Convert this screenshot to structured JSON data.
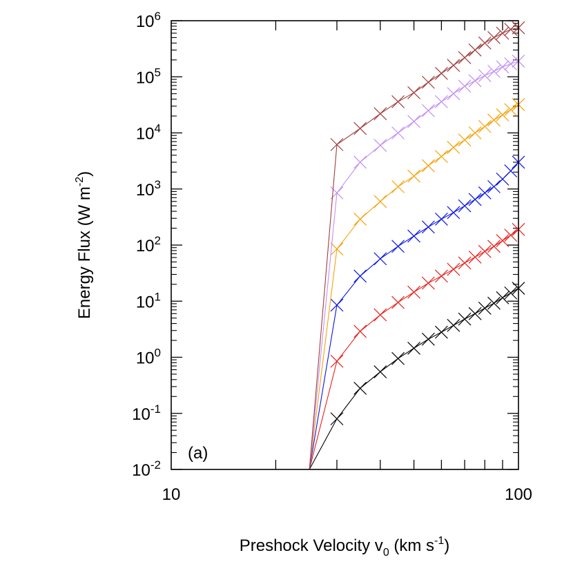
{
  "chart_data": {
    "type": "line",
    "panel_label": "(a)",
    "xlabel": {
      "main": "Preshock Velocity v",
      "sub": "0",
      "unit_pre": " (km s",
      "sup": "-1",
      "unit_post": ")"
    },
    "ylabel": {
      "main": "Energy Flux (W m",
      "sup": "-2",
      "post": ")"
    },
    "x_scale": "log",
    "y_scale": "log",
    "xlim": [
      10,
      100
    ],
    "ylim": [
      0.01,
      1000000
    ],
    "x_ticks": [
      {
        "value": 10,
        "label": "10"
      },
      {
        "value": 100,
        "label": "100"
      }
    ],
    "y_ticks": [
      {
        "value": 0.01,
        "base": "10",
        "exp": "-2"
      },
      {
        "value": 0.1,
        "base": "10",
        "exp": "-1"
      },
      {
        "value": 1,
        "base": "10",
        "exp": "0"
      },
      {
        "value": 10,
        "base": "10",
        "exp": "1"
      },
      {
        "value": 100,
        "base": "10",
        "exp": "2"
      },
      {
        "value": 1000,
        "base": "10",
        "exp": "3"
      },
      {
        "value": 10000,
        "base": "10",
        "exp": "4"
      },
      {
        "value": 100000,
        "base": "10",
        "exp": "5"
      },
      {
        "value": 1000000,
        "base": "10",
        "exp": "6"
      }
    ],
    "grid": false,
    "x": [
      25,
      30,
      35,
      40,
      45,
      50,
      55,
      60,
      65,
      70,
      75,
      80,
      85,
      90,
      95,
      100
    ],
    "series": [
      {
        "color": "#000000",
        "values": [
          0.01,
          0.08,
          0.28,
          0.55,
          0.95,
          1.45,
          2.1,
          2.8,
          3.7,
          4.8,
          6.0,
          7.5,
          9.2,
          11.5,
          14.0,
          17.0
        ]
      },
      {
        "color": "#e8201c",
        "values": [
          0.01,
          0.85,
          2.9,
          5.7,
          9.5,
          14.5,
          21.0,
          28.0,
          37.0,
          48.0,
          61.0,
          77.0,
          95.0,
          120.0,
          150.0,
          190.0
        ]
      },
      {
        "color": "#0a14e6",
        "values": [
          0.01,
          8.5,
          28.0,
          57.0,
          95.0,
          145.0,
          210.0,
          290.0,
          380.0,
          500.0,
          650.0,
          850.0,
          1100.0,
          1500.0,
          2100.0,
          3000.0
        ]
      },
      {
        "color": "#f5a20a",
        "values": [
          0.01,
          85.0,
          290.0,
          600.0,
          1100.0,
          1700.0,
          2600.0,
          3800.0,
          5500.0,
          7500.0,
          10000.0,
          13000.0,
          17000.0,
          21000.0,
          26000.0,
          32000.0
        ]
      },
      {
        "color": "#c38ef2",
        "values": [
          0.01,
          850.0,
          3000.0,
          6000.0,
          10000.0,
          16000.0,
          25000.0,
          36000.0,
          50000.0,
          68000.0,
          85000.0,
          105000.0,
          125000.0,
          150000.0,
          170000.0,
          190000.0
        ]
      },
      {
        "color": "#a23b3b",
        "values": [
          0.01,
          6200.0,
          12000.0,
          22000.0,
          36000.0,
          52000.0,
          80000.0,
          115000.0,
          160000.0,
          220000.0,
          300000.0,
          400000.0,
          500000.0,
          600000.0,
          700000.0,
          750000.0
        ]
      }
    ]
  }
}
